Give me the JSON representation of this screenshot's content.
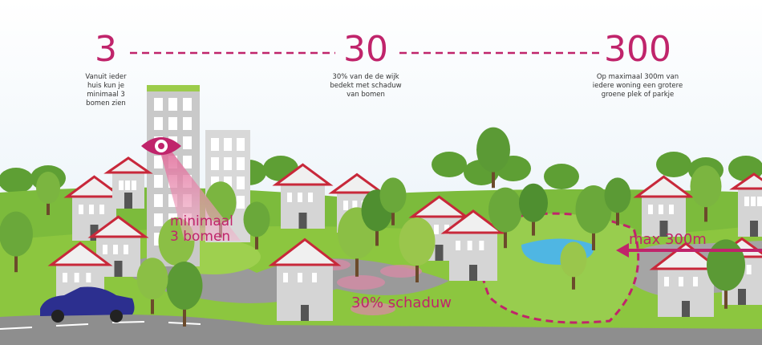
{
  "items": [
    {
      "number": "3",
      "description": [
        "Vanuit ieder",
        "huis kun je",
        "minimaal 3",
        "bomen zien"
      ]
    },
    {
      "number": "30",
      "description": [
        "30% van de de wijk",
        "bedekt met schaduw",
        "van bomen"
      ]
    },
    {
      "number": "300",
      "description": [
        "Op maximaal 300m van",
        "iedere woning een grotere",
        "groene plek of parkje"
      ]
    }
  ],
  "labels": {
    "trees": [
      "minimaal",
      "3 bomen"
    ],
    "shade": "30% schaduw",
    "distance": "max 300m"
  }
}
